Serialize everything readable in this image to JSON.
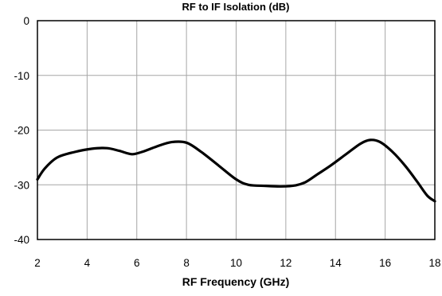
{
  "chart_data": {
    "type": "line",
    "title": "RF to IF Isolation (dB)",
    "xlabel": "RF Frequency (GHz)",
    "ylabel": "",
    "xlim": [
      2,
      18
    ],
    "ylim": [
      -40,
      0
    ],
    "xticks": [
      2,
      4,
      6,
      8,
      10,
      12,
      14,
      16,
      18
    ],
    "yticks": [
      0,
      -10,
      -20,
      -30,
      -40
    ],
    "grid": true,
    "legend": "none",
    "series": [
      {
        "color": "#000000",
        "x": [
          2.0,
          2.3,
          2.8,
          3.5,
          4.2,
          4.8,
          5.3,
          5.8,
          6.2,
          6.8,
          7.4,
          8.0,
          8.6,
          9.3,
          10.0,
          10.5,
          11.2,
          11.8,
          12.4,
          12.8,
          13.3,
          13.8,
          14.4,
          15.0,
          15.4,
          15.8,
          16.3,
          16.8,
          17.3,
          17.7,
          18.0
        ],
        "y": [
          -29.0,
          -27.0,
          -25.0,
          -24.0,
          -23.4,
          -23.3,
          -23.8,
          -24.4,
          -24.0,
          -23.0,
          -22.2,
          -22.3,
          -24.0,
          -26.5,
          -29.0,
          -30.0,
          -30.2,
          -30.3,
          -30.1,
          -29.5,
          -28.0,
          -26.5,
          -24.5,
          -22.5,
          -21.8,
          -22.2,
          -24.0,
          -26.5,
          -29.5,
          -32.0,
          -33.0
        ]
      }
    ]
  }
}
